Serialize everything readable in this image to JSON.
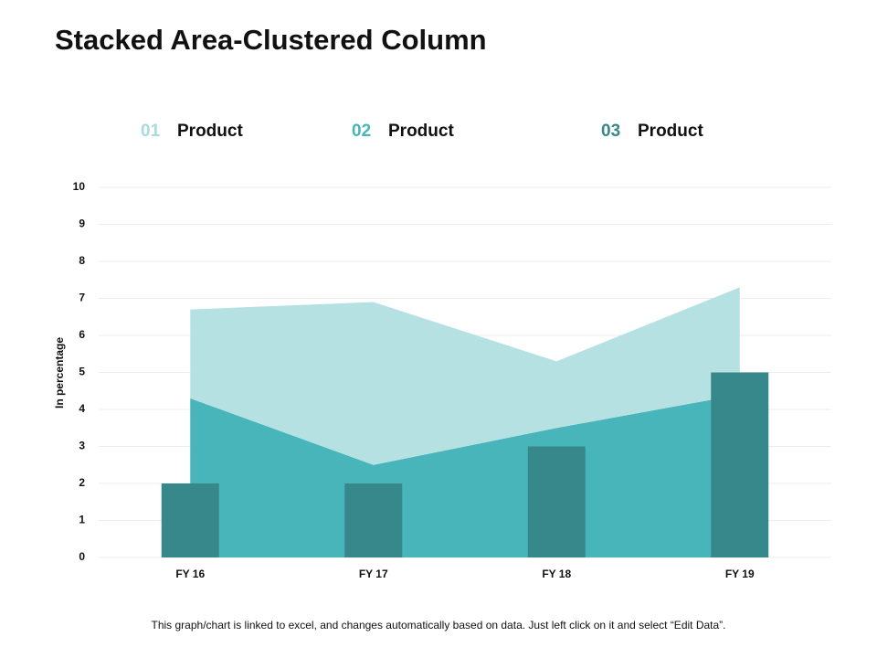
{
  "chart_data": {
    "type": "area-column",
    "title": "Stacked Area-Clustered Column",
    "y_label": "In percentage",
    "categories": [
      "FY 16",
      "FY 17",
      "FY 18",
      "FY 19"
    ],
    "series": [
      {
        "number": "01",
        "name": "Product",
        "type": "area",
        "color": "#b6e1e3",
        "values": [
          2.4,
          4.4,
          1.8,
          2.9
        ]
      },
      {
        "number": "02",
        "name": "Product",
        "type": "area",
        "color": "#48b5ba",
        "values": [
          4.3,
          2.5,
          3.5,
          4.4
        ]
      },
      {
        "number": "03",
        "name": "Product",
        "type": "bar",
        "color": "#36888b",
        "values": [
          2,
          2,
          3,
          5
        ]
      }
    ],
    "ylim": [
      0,
      10
    ],
    "yticks": [
      0,
      1,
      2,
      3,
      4,
      5,
      6,
      7,
      8,
      9,
      10
    ],
    "grid": true,
    "footnote": "This graph/chart is linked to excel, and changes automatically based on data. Just left click on it and select “Edit Data”."
  }
}
